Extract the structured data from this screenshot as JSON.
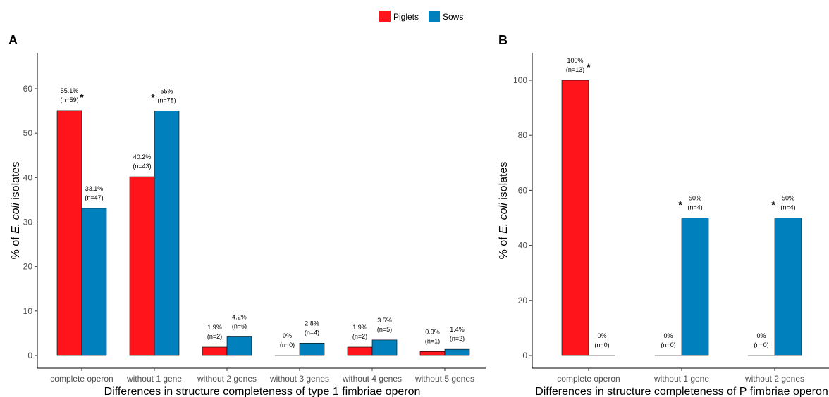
{
  "legend": {
    "items": [
      {
        "label": "Piglets",
        "color": "#FF141C"
      },
      {
        "label": "Sows",
        "color": "#0080BD"
      }
    ]
  },
  "chart_data": [
    {
      "type": "bar",
      "panel_label": "A",
      "title": "",
      "xlabel": "Differences in structure completeness of type 1 fimbriae operon",
      "ylabel_prefix": "% of ",
      "ylabel_italic": "E. coli",
      "ylabel_suffix": " isolates",
      "ylim": [
        0,
        69
      ],
      "yticks": [
        0,
        10,
        20,
        30,
        40,
        50,
        60
      ],
      "categories": [
        "complete operon",
        "without 1 gene",
        "without 2 genes",
        "without 3 genes",
        "without 4 genes",
        "without 5 genes"
      ],
      "series": [
        {
          "name": "Piglets",
          "values": [
            55.1,
            40.2,
            1.9,
            0,
            1.9,
            0.9
          ],
          "labels": [
            [
              "55.1%",
              "(n=59)"
            ],
            [
              "40.2%",
              "(n=43)"
            ],
            [
              "1.9%",
              "(n=2)"
            ],
            [
              "0%",
              "(n=0)"
            ],
            [
              "1.9%",
              "(n=2)"
            ],
            [
              "0.9%",
              "(n=1)"
            ]
          ]
        },
        {
          "name": "Sows",
          "values": [
            33.1,
            55,
            4.2,
            2.8,
            3.5,
            1.4
          ],
          "labels": [
            [
              "33.1%",
              "(n=47)"
            ],
            [
              "55%",
              "(n=78)"
            ],
            [
              "4.2%",
              "(n=6)"
            ],
            [
              "2.8%",
              "(n=4)"
            ],
            [
              "3.5%",
              "(n=5)"
            ],
            [
              "1.4%",
              "(n=2)"
            ]
          ]
        }
      ],
      "significance": [
        {
          "category": 0,
          "series": 0,
          "symbol": "*"
        },
        {
          "category": 1,
          "series": 1,
          "symbol": "*"
        }
      ]
    },
    {
      "type": "bar",
      "panel_label": "B",
      "title": "",
      "xlabel": "Differences in structure completeness of P fimbriae operon",
      "ylabel_prefix": "% of ",
      "ylabel_italic": "E. coli",
      "ylabel_suffix": " isolates",
      "ylim": [
        0,
        110
      ],
      "yticks": [
        0,
        20,
        40,
        60,
        80,
        100
      ],
      "categories": [
        "complete operon",
        "without 1 gene",
        "without 2 genes"
      ],
      "series": [
        {
          "name": "Piglets",
          "values": [
            100,
            0,
            0
          ],
          "labels": [
            [
              "100%",
              "(n=13)"
            ],
            [
              "0%",
              "(n=0)"
            ],
            [
              "0%",
              "(n=0)"
            ]
          ]
        },
        {
          "name": "Sows",
          "values": [
            0,
            50,
            50
          ],
          "labels": [
            [
              "0%",
              "(n=0)"
            ],
            [
              "50%",
              "(n=4)"
            ],
            [
              "50%",
              "(n=4)"
            ]
          ]
        }
      ],
      "significance": [
        {
          "category": 0,
          "series": 0,
          "symbol": "*"
        },
        {
          "category": 1,
          "series": 1,
          "symbol": "*"
        },
        {
          "category": 2,
          "series": 1,
          "symbol": "*"
        }
      ]
    }
  ]
}
